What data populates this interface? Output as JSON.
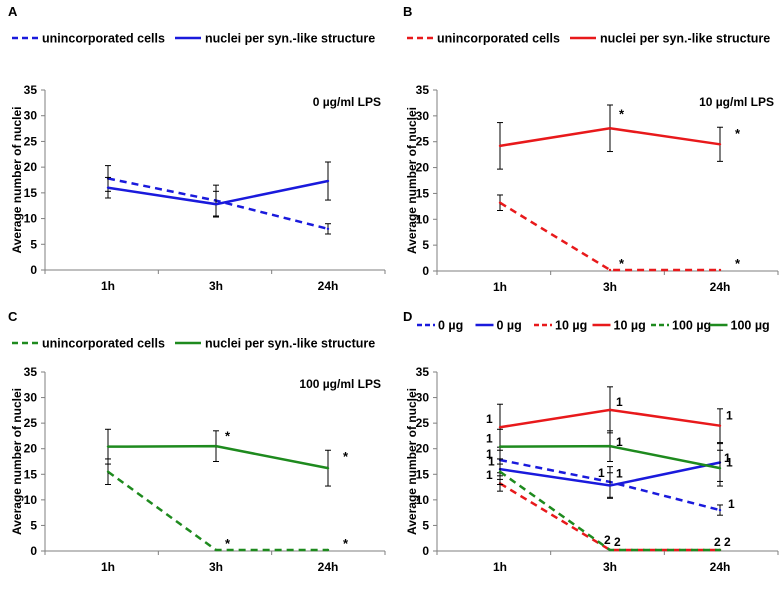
{
  "chart_data": [
    {
      "panel": "A",
      "type": "line",
      "condition": "0 µg/ml LPS",
      "ylabel": "Average number of nuclei",
      "categories": [
        "1h",
        "3h",
        "24h"
      ],
      "ylim": [
        0,
        35
      ],
      "yticks": [
        "0",
        "5",
        "10",
        "15",
        "20",
        "25",
        "30",
        "35"
      ],
      "legend": "top",
      "series": [
        {
          "name": "unincorporated cells",
          "color": "#1a1adc",
          "dash": true,
          "values": [
            17.8,
            13.5,
            8.0
          ],
          "errors": [
            2.5,
            3.0,
            1.0
          ],
          "stars": [
            "",
            "",
            ""
          ]
        },
        {
          "name": "nuclei per syn.-like structure",
          "color": "#1a1adc",
          "dash": false,
          "values": [
            16.0,
            12.8,
            17.3
          ],
          "errors": [
            2.0,
            2.5,
            3.7
          ],
          "stars": [
            "",
            "",
            ""
          ]
        }
      ]
    },
    {
      "panel": "B",
      "type": "line",
      "condition": "10 µg/ml LPS",
      "ylabel": "Average number of nuclei",
      "categories": [
        "1h",
        "3h",
        "24h"
      ],
      "ylim": [
        0,
        35
      ],
      "yticks": [
        "0",
        "5",
        "10",
        "15",
        "20",
        "25",
        "30",
        "35"
      ],
      "legend": "top",
      "series": [
        {
          "name": "unincorporated cells",
          "color": "#e8191b",
          "dash": true,
          "values": [
            13.2,
            0.2,
            0.2
          ],
          "errors": [
            1.5,
            0,
            0
          ],
          "stars": [
            "",
            "*",
            "*"
          ]
        },
        {
          "name": "nuclei per syn.-like structure",
          "color": "#e8191b",
          "dash": false,
          "values": [
            24.2,
            27.6,
            24.5
          ],
          "errors": [
            4.5,
            4.5,
            3.3
          ],
          "stars": [
            "",
            "*",
            "*"
          ]
        }
      ]
    },
    {
      "panel": "C",
      "type": "line",
      "condition": "100 µg/ml LPS",
      "ylabel": "Average number of nuclei",
      "categories": [
        "1h",
        "3h",
        "24h"
      ],
      "ylim": [
        0,
        35
      ],
      "yticks": [
        "0",
        "5",
        "10",
        "15",
        "20",
        "25",
        "30",
        "35"
      ],
      "legend": "top",
      "series": [
        {
          "name": "unincorporated cells",
          "color": "#1e8a1e",
          "dash": true,
          "values": [
            15.5,
            0.2,
            0.2
          ],
          "errors": [
            2.5,
            0,
            0
          ],
          "stars": [
            "",
            "*",
            "*"
          ]
        },
        {
          "name": "nuclei per syn.-like structure",
          "color": "#1e8a1e",
          "dash": false,
          "values": [
            20.4,
            20.5,
            16.2
          ],
          "errors": [
            3.4,
            3.0,
            3.5
          ],
          "stars": [
            "",
            "*",
            "*"
          ]
        }
      ]
    },
    {
      "panel": "D",
      "type": "line",
      "condition": "",
      "ylabel": "Average number of nuclei",
      "categories": [
        "1h",
        "3h",
        "24h"
      ],
      "ylim": [
        0,
        35
      ],
      "yticks": [
        "0",
        "5",
        "10",
        "15",
        "20",
        "25",
        "30",
        "35"
      ],
      "legend": "top",
      "series": [
        {
          "name": "0 µg",
          "color": "#1a1adc",
          "dash": true,
          "values": [
            17.8,
            13.5,
            8.0
          ],
          "errors": [
            2.5,
            3.0,
            1.0
          ],
          "labels": [
            "1",
            "1",
            "1"
          ]
        },
        {
          "name": "0 µg",
          "color": "#1a1adc",
          "dash": false,
          "values": [
            16.0,
            12.8,
            17.3
          ],
          "errors": [
            2.0,
            2.5,
            3.7
          ],
          "labels": [
            "1",
            "1",
            "1"
          ]
        },
        {
          "name": "10 µg",
          "color": "#e8191b",
          "dash": true,
          "values": [
            13.2,
            0.2,
            0.2
          ],
          "errors": [
            1.5,
            0,
            0
          ],
          "labels": [
            "",
            "2",
            "2"
          ]
        },
        {
          "name": "10 µg",
          "color": "#e8191b",
          "dash": false,
          "values": [
            24.2,
            27.6,
            24.5
          ],
          "errors": [
            4.5,
            4.5,
            3.3
          ],
          "labels": [
            "1",
            "1",
            "1"
          ]
        },
        {
          "name": "100 µg",
          "color": "#1e8a1e",
          "dash": true,
          "values": [
            15.5,
            0.2,
            0.2
          ],
          "errors": [
            2.5,
            0,
            0
          ],
          "labels": [
            "1",
            "2",
            "2"
          ]
        },
        {
          "name": "100 µg",
          "color": "#1e8a1e",
          "dash": false,
          "values": [
            20.4,
            20.5,
            16.2
          ],
          "errors": [
            3.4,
            3.0,
            3.5
          ],
          "labels": [
            "1",
            "1",
            "1"
          ]
        }
      ]
    }
  ]
}
